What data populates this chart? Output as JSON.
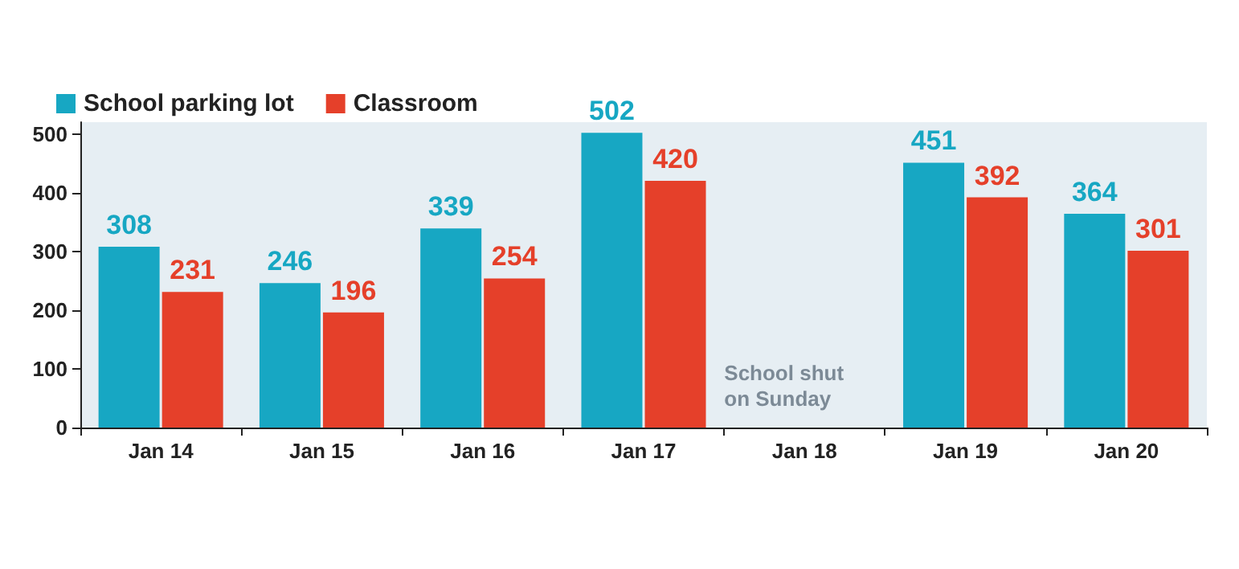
{
  "chart_data": {
    "type": "bar",
    "categories": [
      "Jan 14",
      "Jan 15",
      "Jan 16",
      "Jan 17",
      "Jan 18",
      "Jan 19",
      "Jan 20"
    ],
    "series": [
      {
        "name": "School parking lot",
        "color": "#17a7c3",
        "values": [
          308,
          246,
          339,
          502,
          null,
          451,
          364
        ]
      },
      {
        "name": "Classroom",
        "color": "#e5402a",
        "values": [
          231,
          196,
          254,
          420,
          null,
          392,
          301
        ]
      }
    ],
    "ylim": [
      0,
      520
    ],
    "yticks": [
      0,
      100,
      200,
      300,
      400,
      500
    ],
    "grid": false,
    "legend": "top left",
    "data_labels": true,
    "annotations": [
      "School shut\non Sunday"
    ]
  }
}
